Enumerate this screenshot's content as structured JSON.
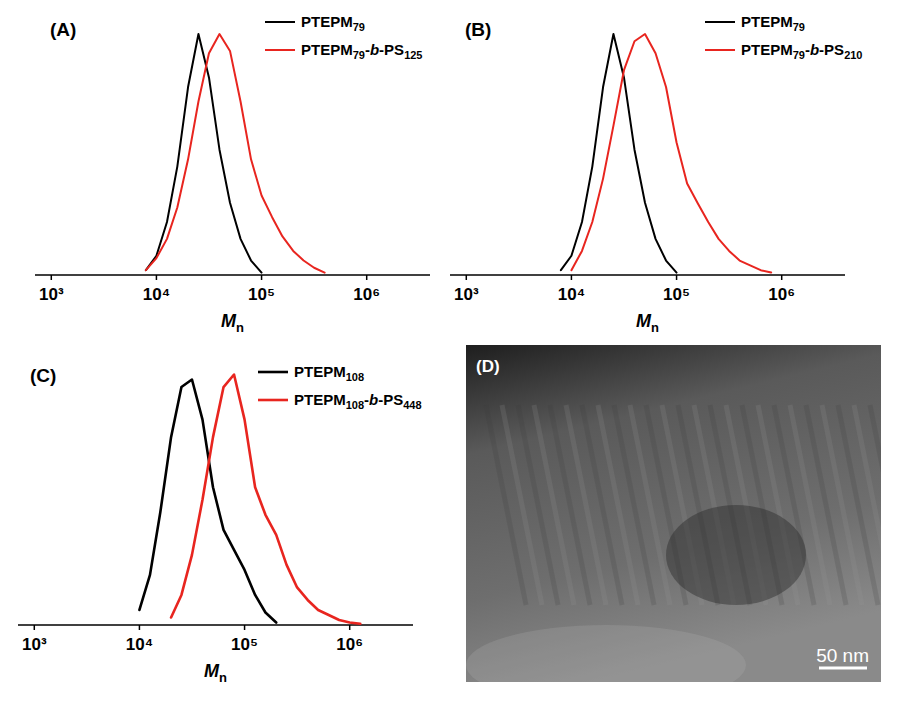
{
  "chart_data": [
    {
      "type": "line",
      "title": "(A)",
      "xlabel": "Mn",
      "log": "x",
      "legend": "top-right",
      "tick_labels": "x",
      "grid": false,
      "xlim": [
        700,
        4000000
      ],
      "ylim": [
        0,
        1.05
      ],
      "xticks": [
        {
          "value": 1000,
          "label": "10³"
        },
        {
          "value": 10000,
          "label": "10⁴"
        },
        {
          "value": 100000,
          "label": "10⁵"
        },
        {
          "value": 1000000,
          "label": "10⁶"
        }
      ],
      "x": [
        6310,
        7940,
        10000,
        12600,
        15800,
        20000,
        25100,
        31600,
        39800,
        50100,
        63100,
        79400,
        100000,
        126000,
        158000,
        200000,
        251000,
        316000,
        398000,
        501000,
        631000,
        794000,
        1000000,
        1260000,
        1580000
      ],
      "series": [
        {
          "name": "PTEPM79",
          "color": "#000000",
          "values": [
            null,
            0.02,
            0.08,
            0.22,
            0.45,
            0.78,
            1.0,
            0.82,
            0.52,
            0.3,
            0.15,
            0.06,
            0.01,
            null,
            null,
            null,
            null,
            null,
            null,
            null,
            null,
            null,
            null,
            null,
            null
          ]
        },
        {
          "name": "PTEPM79-b-PS125",
          "color": "#e8251f",
          "values": [
            null,
            0.02,
            0.07,
            0.15,
            0.28,
            0.48,
            0.72,
            0.92,
            1.0,
            0.93,
            0.72,
            0.48,
            0.33,
            0.24,
            0.16,
            0.1,
            0.06,
            0.03,
            0.01,
            null,
            null,
            null,
            null,
            null,
            null
          ]
        }
      ]
    },
    {
      "type": "line",
      "title": "(B)",
      "xlabel": "Mn",
      "log": "x",
      "legend": "top-right",
      "tick_labels": "x",
      "grid": false,
      "xlim": [
        700,
        4000000
      ],
      "ylim": [
        0,
        1.05
      ],
      "xticks": [
        {
          "value": 1000,
          "label": "10³"
        },
        {
          "value": 10000,
          "label": "10⁴"
        },
        {
          "value": 100000,
          "label": "10⁵"
        },
        {
          "value": 1000000,
          "label": "10⁶"
        }
      ],
      "x": [
        6310,
        7940,
        10000,
        12600,
        15800,
        20000,
        25100,
        31600,
        39800,
        50100,
        63100,
        79400,
        100000,
        126000,
        158000,
        200000,
        251000,
        316000,
        398000,
        501000,
        631000,
        794000,
        1000000,
        1260000,
        1580000
      ],
      "series": [
        {
          "name": "PTEPM79",
          "color": "#000000",
          "values": [
            null,
            0.02,
            0.08,
            0.22,
            0.45,
            0.78,
            1.0,
            0.82,
            0.52,
            0.3,
            0.15,
            0.06,
            0.01,
            null,
            null,
            null,
            null,
            null,
            null,
            null,
            null,
            null,
            null,
            null,
            null
          ]
        },
        {
          "name": "PTEPM79-b-PS210",
          "color": "#e8251f",
          "values": [
            null,
            null,
            0.02,
            0.1,
            0.22,
            0.4,
            0.62,
            0.85,
            0.97,
            1.0,
            0.92,
            0.78,
            0.55,
            0.38,
            0.3,
            0.22,
            0.15,
            0.1,
            0.06,
            0.04,
            0.02,
            0.01,
            null,
            null,
            null
          ]
        }
      ]
    },
    {
      "type": "line",
      "title": "(C)",
      "xlabel": "Mn",
      "log": "x",
      "legend": "top-right",
      "tick_labels": "x",
      "grid": false,
      "xlim": [
        700,
        4000000
      ],
      "ylim": [
        0,
        1.05
      ],
      "xticks": [
        {
          "value": 1000,
          "label": "10³"
        },
        {
          "value": 10000,
          "label": "10⁴"
        },
        {
          "value": 100000,
          "label": "10⁵"
        },
        {
          "value": 1000000,
          "label": "10⁶"
        }
      ],
      "x": [
        6310,
        7940,
        10000,
        12600,
        15800,
        20000,
        25100,
        31600,
        39800,
        50100,
        63100,
        79400,
        100000,
        126000,
        158000,
        200000,
        251000,
        316000,
        398000,
        501000,
        631000,
        794000,
        1000000,
        1260000,
        1580000
      ],
      "series": [
        {
          "name": "PTEPM108",
          "color": "#000000",
          "values": [
            null,
            null,
            0.06,
            0.2,
            0.45,
            0.75,
            0.95,
            0.98,
            0.82,
            0.55,
            0.38,
            0.3,
            0.22,
            0.12,
            0.05,
            0.01,
            null,
            null,
            null,
            null,
            null,
            null,
            null,
            null,
            null
          ]
        },
        {
          "name": "PTEPM108-b-PS448",
          "color": "#e8251f",
          "values": [
            null,
            null,
            null,
            null,
            null,
            0.03,
            0.12,
            0.28,
            0.5,
            0.75,
            0.95,
            1.0,
            0.82,
            0.55,
            0.44,
            0.36,
            0.24,
            0.15,
            0.1,
            0.06,
            0.04,
            0.02,
            0.01,
            0.005,
            null
          ]
        }
      ]
    }
  ],
  "image": {
    "label": "(D)",
    "scale_bar": "50 nm"
  }
}
